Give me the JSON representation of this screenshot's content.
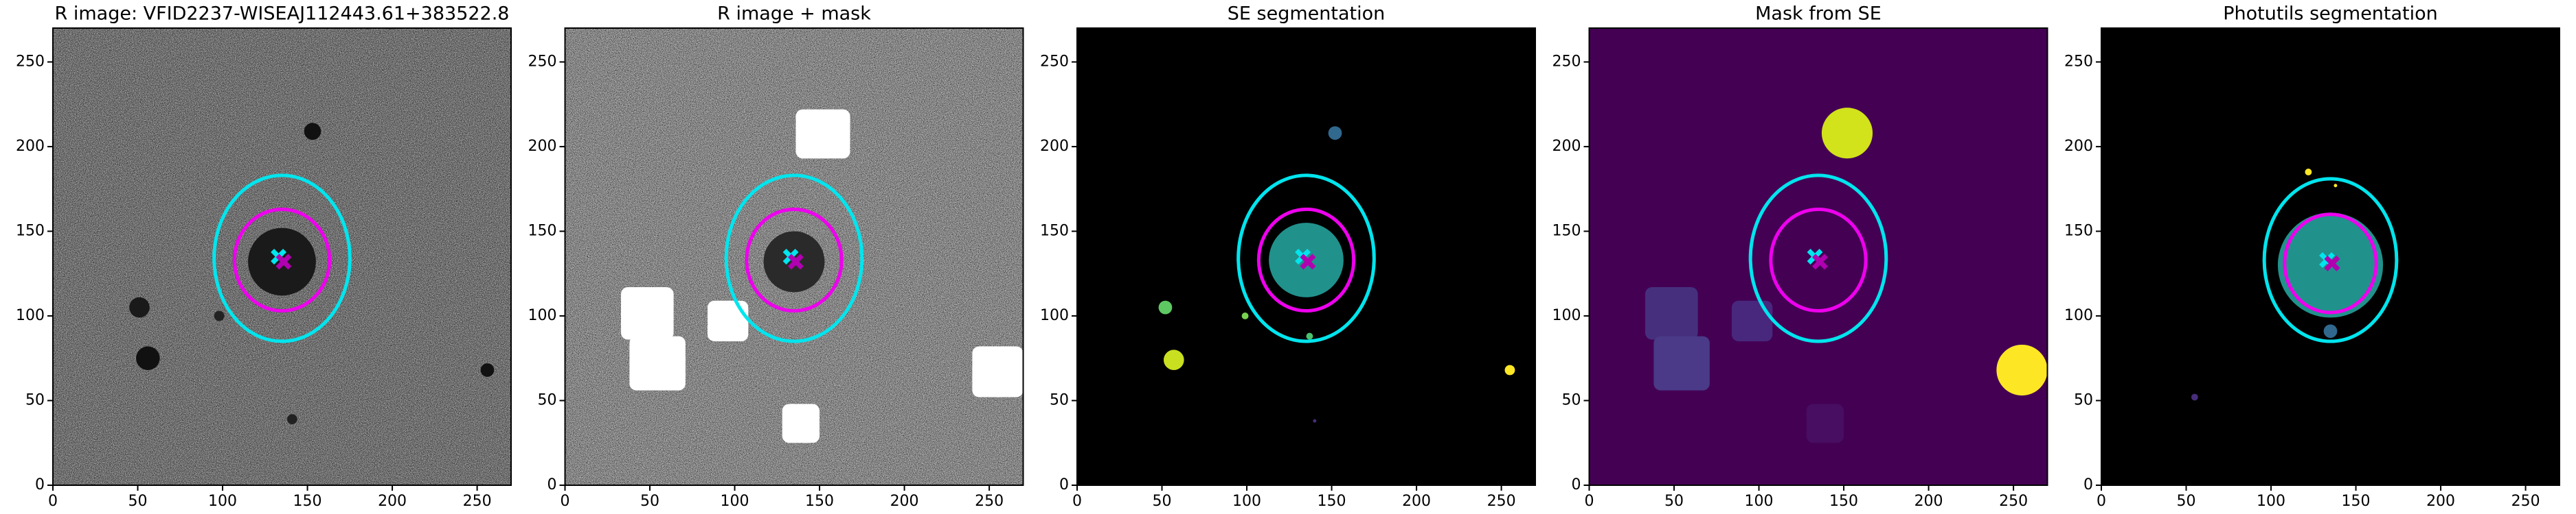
{
  "chart_data": [
    {
      "type": "image",
      "title": "R image: VFID2237-WISEAJ112443.61+383522.8",
      "xlim": [
        0,
        270
      ],
      "ylim": [
        0,
        270
      ],
      "xticks": [
        0,
        50,
        100,
        150,
        200,
        250
      ],
      "yticks": [
        0,
        50,
        100,
        150,
        200,
        250
      ],
      "background": "#7a7a7a",
      "noise": true,
      "regions": [
        {
          "shape": "circle",
          "cx": 135,
          "cy": 132,
          "r": 20,
          "color": "#1a1a1a"
        },
        {
          "shape": "circle",
          "cx": 153,
          "cy": 209,
          "r": 5,
          "color": "#111111"
        },
        {
          "shape": "circle",
          "cx": 51,
          "cy": 105,
          "r": 6,
          "color": "#1a1a1a"
        },
        {
          "shape": "circle",
          "cx": 56,
          "cy": 75,
          "r": 7,
          "color": "#111111"
        },
        {
          "shape": "circle",
          "cx": 98,
          "cy": 100,
          "r": 3,
          "color": "#222222"
        },
        {
          "shape": "circle",
          "cx": 256,
          "cy": 68,
          "r": 4,
          "color": "#111111"
        },
        {
          "shape": "circle",
          "cx": 141,
          "cy": 39,
          "r": 3,
          "color": "#222222"
        }
      ],
      "ellipses": [
        {
          "cx": 135,
          "cy": 134,
          "rx": 40,
          "ry": 49,
          "color": "#00e5ee"
        },
        {
          "cx": 135,
          "cy": 133,
          "rx": 28,
          "ry": 30,
          "color": "#ee00ee"
        }
      ],
      "markers": [
        {
          "x": 133,
          "y": 135,
          "color": "#00e5ee"
        },
        {
          "x": 136,
          "y": 132,
          "color": "#b000b0"
        }
      ]
    },
    {
      "type": "image",
      "title": "R image + mask",
      "xlim": [
        0,
        270
      ],
      "ylim": [
        0,
        270
      ],
      "xticks": [
        0,
        50,
        100,
        150,
        200,
        250
      ],
      "yticks": [
        0,
        50,
        100,
        150,
        200,
        250
      ],
      "background": "#9a9a9a",
      "noise": true,
      "regions": [
        {
          "shape": "circle",
          "cx": 135,
          "cy": 132,
          "r": 18,
          "color": "#2a2a2a"
        },
        {
          "shape": "rect",
          "x0": 136,
          "x1": 168,
          "y0": 193,
          "y1": 222,
          "color": "#ffffff"
        },
        {
          "shape": "rect",
          "x0": 33,
          "x1": 64,
          "y0": 86,
          "y1": 117,
          "color": "#ffffff"
        },
        {
          "shape": "rect",
          "x0": 38,
          "x1": 71,
          "y0": 56,
          "y1": 88,
          "color": "#ffffff"
        },
        {
          "shape": "rect",
          "x0": 84,
          "x1": 108,
          "y0": 85,
          "y1": 109,
          "color": "#ffffff"
        },
        {
          "shape": "rect",
          "x0": 128,
          "x1": 150,
          "y0": 25,
          "y1": 48,
          "color": "#ffffff"
        },
        {
          "shape": "rect",
          "x0": 240,
          "x1": 270,
          "y0": 52,
          "y1": 82,
          "color": "#ffffff"
        }
      ],
      "ellipses": [
        {
          "cx": 135,
          "cy": 134,
          "rx": 40,
          "ry": 49,
          "color": "#00e5ee"
        },
        {
          "cx": 135,
          "cy": 133,
          "rx": 28,
          "ry": 30,
          "color": "#ee00ee"
        }
      ],
      "markers": [
        {
          "x": 133,
          "y": 135,
          "color": "#00e5ee"
        },
        {
          "x": 136,
          "y": 132,
          "color": "#b000b0"
        }
      ]
    },
    {
      "type": "image",
      "title": "SE segmentation",
      "xlim": [
        0,
        270
      ],
      "ylim": [
        0,
        270
      ],
      "xticks": [
        0,
        50,
        100,
        150,
        200,
        250
      ],
      "yticks": [
        0,
        50,
        100,
        150,
        200,
        250
      ],
      "background": "#000000",
      "noise": false,
      "regions": [
        {
          "shape": "circle",
          "cx": 135,
          "cy": 133,
          "r": 22,
          "color": "#21918c"
        },
        {
          "shape": "circle",
          "cx": 152,
          "cy": 208,
          "r": 4,
          "color": "#31688e"
        },
        {
          "shape": "circle",
          "cx": 52,
          "cy": 105,
          "r": 4,
          "color": "#5ec962"
        },
        {
          "shape": "circle",
          "cx": 57,
          "cy": 74,
          "r": 6,
          "color": "#c8e020"
        },
        {
          "shape": "circle",
          "cx": 99,
          "cy": 100,
          "r": 2,
          "color": "#7ad151"
        },
        {
          "shape": "circle",
          "cx": 137,
          "cy": 88,
          "r": 2,
          "color": "#4ac16d"
        },
        {
          "shape": "circle",
          "cx": 255,
          "cy": 68,
          "r": 3,
          "color": "#fde725"
        },
        {
          "shape": "circle",
          "cx": 140,
          "cy": 38,
          "r": 1,
          "color": "#472d7b"
        }
      ],
      "ellipses": [
        {
          "cx": 135,
          "cy": 134,
          "rx": 40,
          "ry": 49,
          "color": "#00e5ee"
        },
        {
          "cx": 135,
          "cy": 133,
          "rx": 28,
          "ry": 30,
          "color": "#ee00ee"
        }
      ],
      "markers": [
        {
          "x": 133,
          "y": 135,
          "color": "#00e5ee"
        },
        {
          "x": 136,
          "y": 132,
          "color": "#b000b0"
        }
      ]
    },
    {
      "type": "image",
      "title": "Mask from SE",
      "xlim": [
        0,
        270
      ],
      "ylim": [
        0,
        270
      ],
      "xticks": [
        0,
        50,
        100,
        150,
        200,
        250
      ],
      "yticks": [
        0,
        50,
        100,
        150,
        200,
        250
      ],
      "background": "#440154",
      "noise": false,
      "regions": [
        {
          "shape": "circle",
          "cx": 152,
          "cy": 208,
          "r": 15,
          "color": "#d2e21b"
        },
        {
          "shape": "rect",
          "x0": 33,
          "x1": 64,
          "y0": 86,
          "y1": 117,
          "color": "#46307e"
        },
        {
          "shape": "rect",
          "x0": 38,
          "x1": 71,
          "y0": 56,
          "y1": 88,
          "color": "#4a3a87"
        },
        {
          "shape": "rect",
          "x0": 84,
          "x1": 108,
          "y0": 85,
          "y1": 109,
          "color": "#48287c"
        },
        {
          "shape": "rect",
          "x0": 128,
          "x1": 150,
          "y0": 25,
          "y1": 48,
          "color": "#470e62"
        },
        {
          "shape": "circle",
          "cx": 255,
          "cy": 68,
          "r": 15,
          "color": "#fde725"
        }
      ],
      "ellipses": [
        {
          "cx": 135,
          "cy": 134,
          "rx": 40,
          "ry": 49,
          "color": "#00e5ee"
        },
        {
          "cx": 135,
          "cy": 133,
          "rx": 28,
          "ry": 30,
          "color": "#ee00ee"
        }
      ],
      "markers": [
        {
          "x": 133,
          "y": 135,
          "color": "#00e5ee"
        },
        {
          "x": 136,
          "y": 132,
          "color": "#b000b0"
        }
      ]
    },
    {
      "type": "image",
      "title": "Photutils segmentation",
      "xlim": [
        0,
        270
      ],
      "ylim": [
        0,
        270
      ],
      "xticks": [
        0,
        50,
        100,
        150,
        200,
        250
      ],
      "yticks": [
        0,
        50,
        100,
        150,
        200,
        250
      ],
      "background": "#000000",
      "noise": false,
      "regions": [
        {
          "shape": "circle",
          "cx": 135,
          "cy": 130,
          "r": 31,
          "color": "#21918c"
        },
        {
          "shape": "circle",
          "cx": 135,
          "cy": 91,
          "r": 4,
          "color": "#31688e"
        },
        {
          "shape": "circle",
          "cx": 55,
          "cy": 52,
          "r": 2,
          "color": "#472d7b"
        },
        {
          "shape": "circle",
          "cx": 122,
          "cy": 185,
          "r": 2,
          "color": "#fde725"
        },
        {
          "shape": "circle",
          "cx": 138,
          "cy": 177,
          "r": 1,
          "color": "#fde725"
        }
      ],
      "ellipses": [
        {
          "cx": 135,
          "cy": 133,
          "rx": 39,
          "ry": 48,
          "color": "#00e5ee"
        },
        {
          "cx": 135,
          "cy": 131,
          "rx": 27,
          "ry": 29,
          "color": "#ee00ee"
        }
      ],
      "markers": [
        {
          "x": 133,
          "y": 133,
          "color": "#00e5ee"
        },
        {
          "x": 136,
          "y": 131,
          "color": "#b000b0"
        }
      ]
    }
  ]
}
